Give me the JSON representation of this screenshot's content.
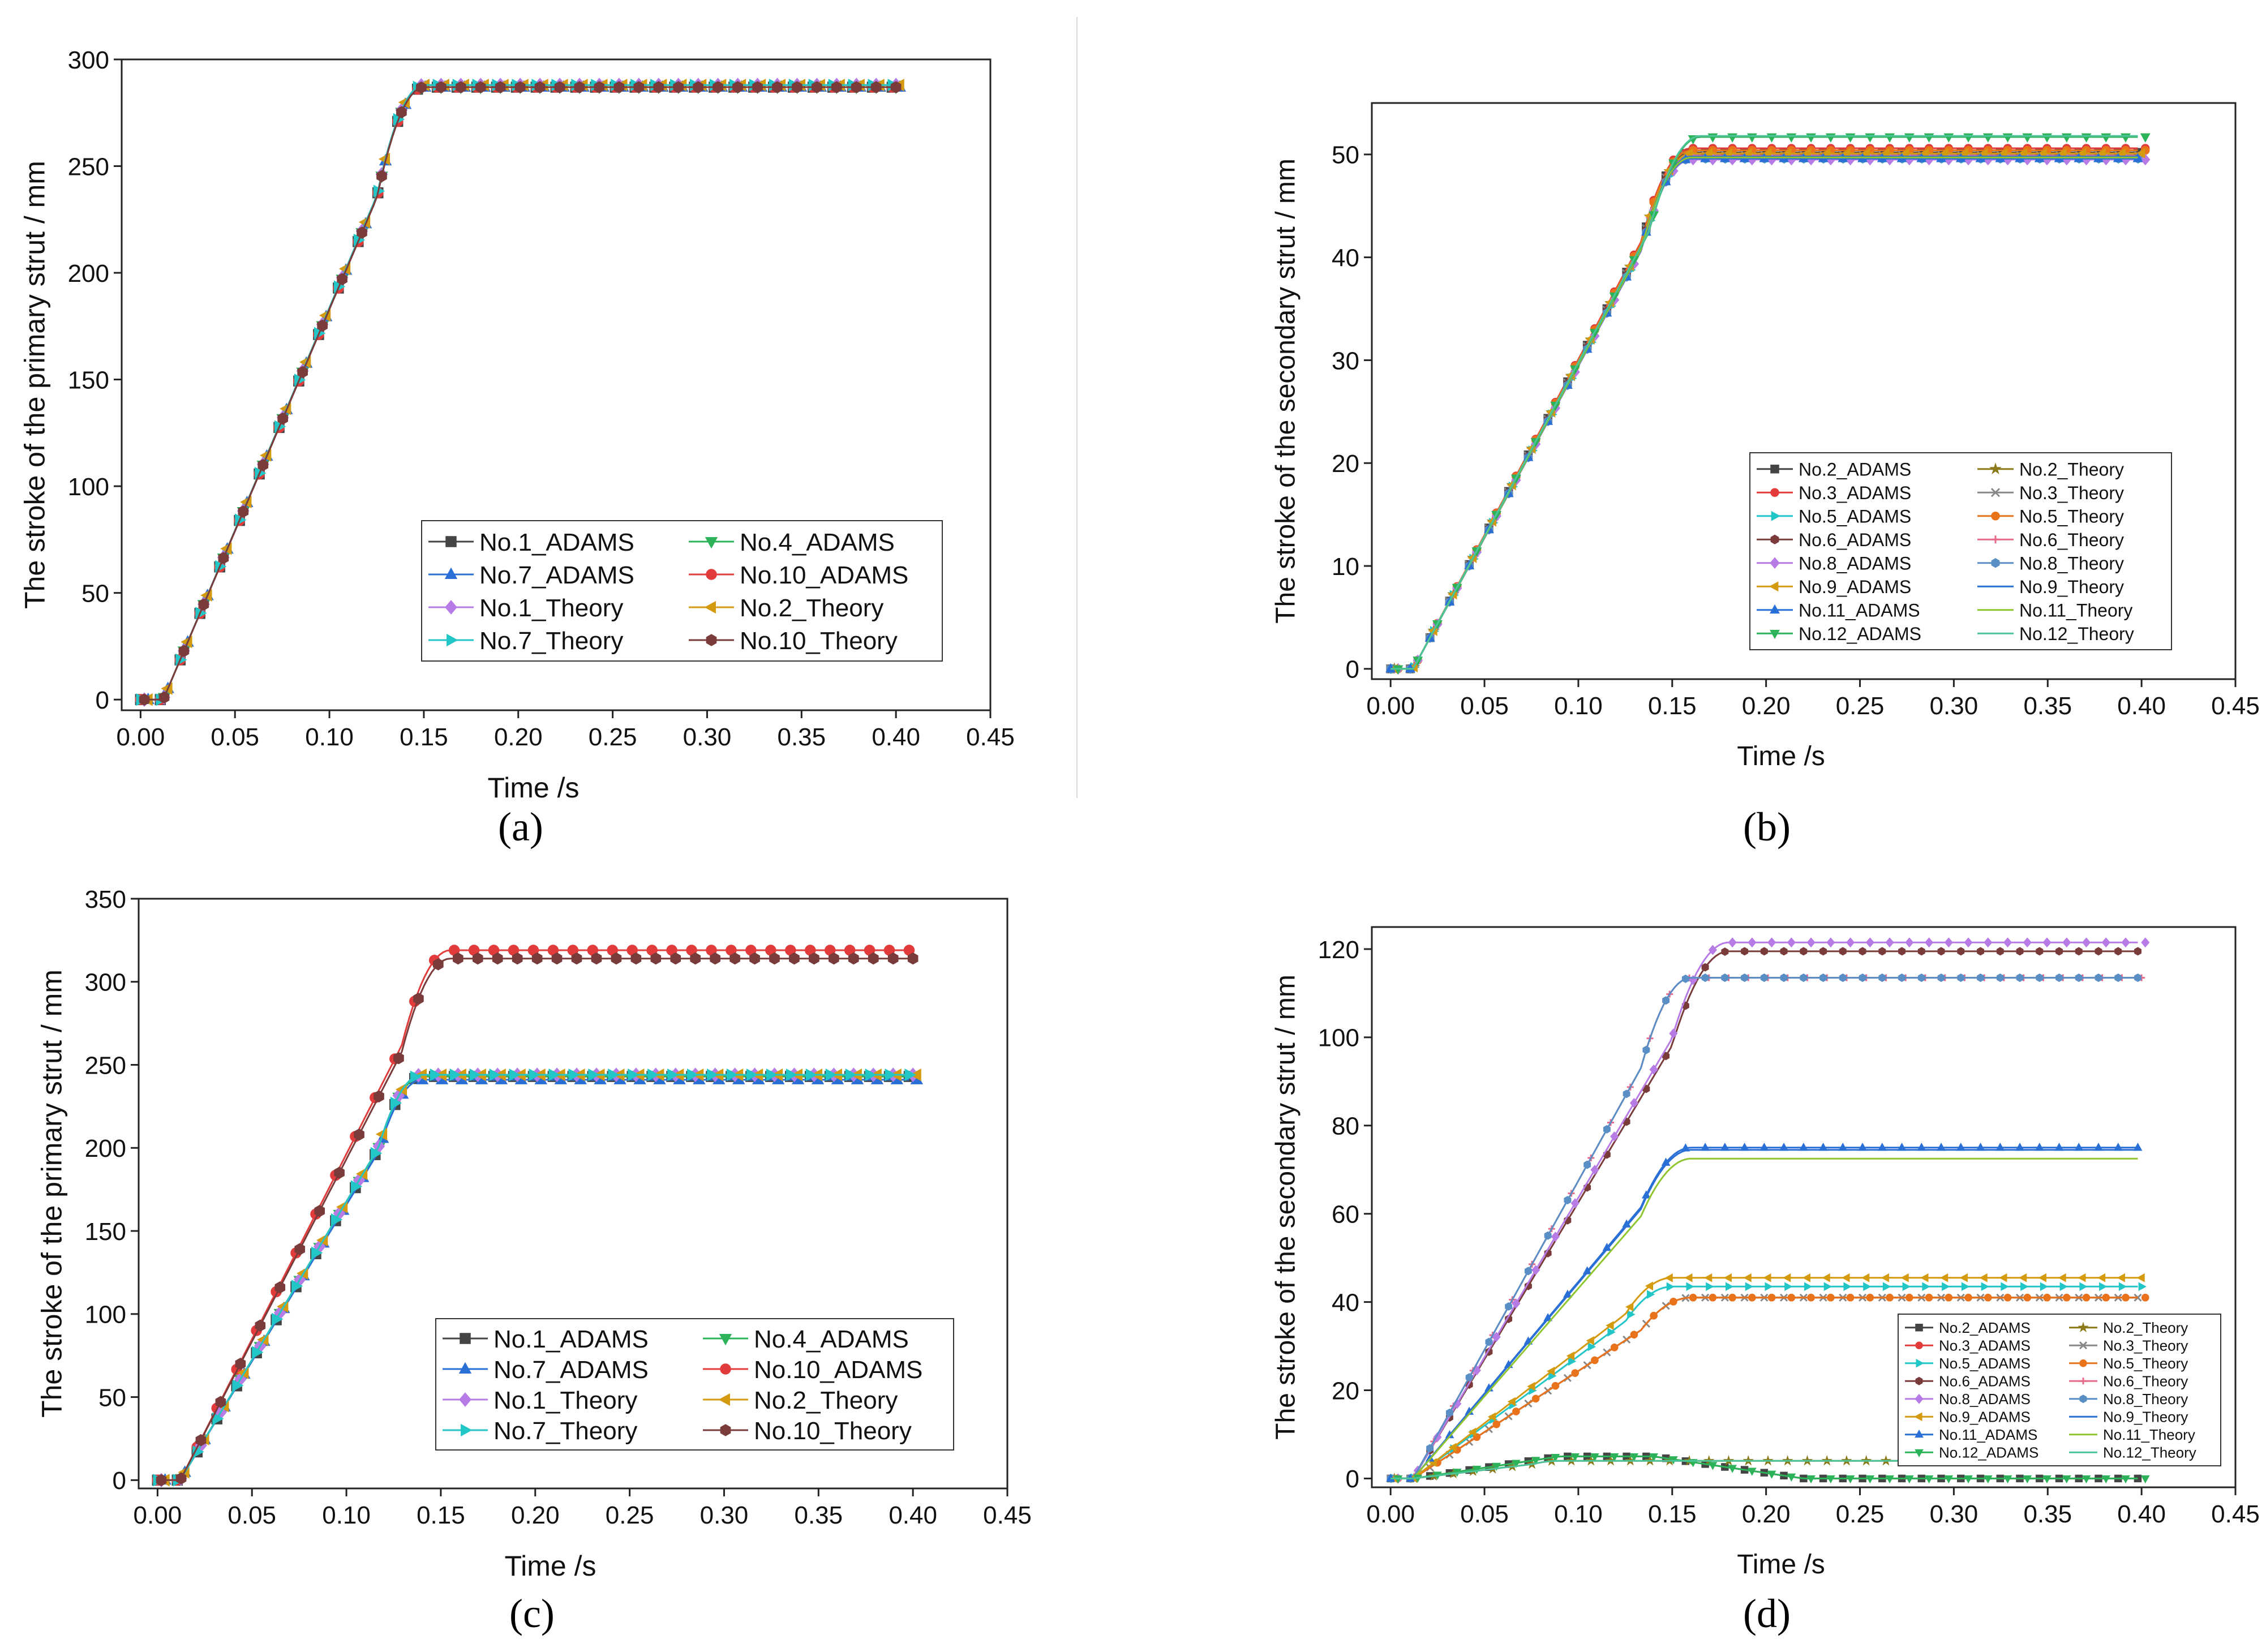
{
  "figure": {
    "captions": [
      "(a)",
      "(b)",
      "(c)",
      "(d)"
    ]
  },
  "chart_data": [
    {
      "id": "a",
      "type": "line",
      "xlabel": "Time /s",
      "ylabel": "The stroke of the primary strut / mm",
      "xlim": [
        -0.01,
        0.45
      ],
      "ylim": [
        -5,
        300
      ],
      "xticks": [
        "0.00",
        "0.05",
        "0.10",
        "0.15",
        "0.20",
        "0.25",
        "0.30",
        "0.35",
        "0.40",
        "0.45"
      ],
      "yticks": [
        "0",
        "50",
        "100",
        "150",
        "200",
        "250",
        "300"
      ],
      "legend_position": "bottom-right",
      "legend_columns": 2,
      "series": [
        {
          "name": "No.1_ADAMS",
          "color": "#444444",
          "marker": "square",
          "final": 287,
          "ramp_end": 0.15,
          "profile": "ramp"
        },
        {
          "name": "No.4_ADAMS",
          "color": "#2cb35a",
          "marker": "triangle-down",
          "final": 287,
          "ramp_end": 0.15,
          "profile": "ramp"
        },
        {
          "name": "No.7_ADAMS",
          "color": "#2a6fd6",
          "marker": "triangle-up",
          "final": 287,
          "ramp_end": 0.15,
          "profile": "ramp"
        },
        {
          "name": "No.10_ADAMS",
          "color": "#e23b3b",
          "marker": "circle",
          "final": 287,
          "ramp_end": 0.15,
          "profile": "ramp"
        },
        {
          "name": "No.1_Theory",
          "color": "#b77be6",
          "marker": "diamond",
          "final": 288,
          "ramp_end": 0.15,
          "profile": "ramp"
        },
        {
          "name": "No.2_Theory",
          "color": "#d49a10",
          "marker": "triangle-left",
          "final": 288,
          "ramp_end": 0.15,
          "profile": "ramp"
        },
        {
          "name": "No.7_Theory",
          "color": "#22c6c6",
          "marker": "triangle-right",
          "final": 288,
          "ramp_end": 0.15,
          "profile": "ramp"
        },
        {
          "name": "No.10_Theory",
          "color": "#7a3b3b",
          "marker": "hexagon",
          "final": 287,
          "ramp_end": 0.15,
          "profile": "ramp"
        }
      ]
    },
    {
      "id": "b",
      "type": "line",
      "xlabel": "Time /s",
      "ylabel": "The stroke of the secondary strut / mm",
      "xlim": [
        -0.01,
        0.45
      ],
      "ylim": [
        -1,
        55
      ],
      "xticks": [
        "0.00",
        "0.05",
        "0.10",
        "0.15",
        "0.20",
        "0.25",
        "0.30",
        "0.35",
        "0.40",
        "0.45"
      ],
      "yticks": [
        "0",
        "10",
        "20",
        "30",
        "40",
        "50"
      ],
      "legend_position": "bottom-right",
      "legend_columns": 2,
      "series": [
        {
          "name": "No.2_ADAMS",
          "color": "#444444",
          "marker": "square",
          "final": 50.2,
          "ramp_end": 0.16,
          "profile": "ramp"
        },
        {
          "name": "No.2_Theory",
          "color": "#8a7a1a",
          "marker": "star",
          "final": 50.0,
          "ramp_end": 0.16,
          "profile": "ramp"
        },
        {
          "name": "No.3_ADAMS",
          "color": "#e23b3b",
          "marker": "circle",
          "final": 50.6,
          "ramp_end": 0.16,
          "profile": "ramp"
        },
        {
          "name": "No.3_Theory",
          "color": "#888888",
          "marker": "x",
          "final": 50.0,
          "ramp_end": 0.16,
          "profile": "ramp"
        },
        {
          "name": "No.5_ADAMS",
          "color": "#22c6c6",
          "marker": "triangle-right",
          "final": 49.6,
          "ramp_end": 0.16,
          "profile": "ramp"
        },
        {
          "name": "No.5_Theory",
          "color": "#e8731a",
          "marker": "circle",
          "final": 50.4,
          "ramp_end": 0.16,
          "profile": "ramp"
        },
        {
          "name": "No.6_ADAMS",
          "color": "#7a3b3b",
          "marker": "hexagon",
          "final": 49.8,
          "ramp_end": 0.16,
          "profile": "ramp"
        },
        {
          "name": "No.6_Theory",
          "color": "#e86a8a",
          "marker": "plus",
          "final": 49.9,
          "ramp_end": 0.16,
          "profile": "ramp"
        },
        {
          "name": "No.8_ADAMS",
          "color": "#b77be6",
          "marker": "diamond",
          "final": 49.5,
          "ramp_end": 0.16,
          "profile": "ramp"
        },
        {
          "name": "No.8_Theory",
          "color": "#5a8fc6",
          "marker": "hexagon",
          "final": 49.6,
          "ramp_end": 0.16,
          "profile": "ramp"
        },
        {
          "name": "No.9_ADAMS",
          "color": "#d49a10",
          "marker": "triangle-left",
          "final": 50.1,
          "ramp_end": 0.16,
          "profile": "ramp"
        },
        {
          "name": "No.9_Theory",
          "color": "#2a6fd6",
          "marker": "none",
          "final": 49.8,
          "ramp_end": 0.16,
          "profile": "ramp"
        },
        {
          "name": "No.11_ADAMS",
          "color": "#2a6fd6",
          "marker": "triangle-up",
          "final": 49.6,
          "ramp_end": 0.16,
          "profile": "ramp"
        },
        {
          "name": "No.11_Theory",
          "color": "#8fc630",
          "marker": "none",
          "final": 49.7,
          "ramp_end": 0.16,
          "profile": "ramp"
        },
        {
          "name": "No.12_ADAMS",
          "color": "#2cb35a",
          "marker": "triangle-down",
          "final": 51.7,
          "ramp_end": 0.165,
          "profile": "ramp"
        },
        {
          "name": "No.12_Theory",
          "color": "#4cc49a",
          "marker": "none",
          "final": 51.8,
          "ramp_end": 0.165,
          "profile": "ramp"
        }
      ]
    },
    {
      "id": "c",
      "type": "line",
      "xlabel": "Time /s",
      "ylabel": "The stroke of the primary strut / mm",
      "xlim": [
        -0.01,
        0.45
      ],
      "ylim": [
        -5,
        350
      ],
      "xticks": [
        "0.00",
        "0.05",
        "0.10",
        "0.15",
        "0.20",
        "0.25",
        "0.30",
        "0.35",
        "0.40",
        "0.45"
      ],
      "yticks": [
        "0",
        "50",
        "100",
        "150",
        "200",
        "250",
        "300",
        "350"
      ],
      "legend_position": "bottom-right",
      "legend_columns": 2,
      "series": [
        {
          "name": "No.1_ADAMS",
          "color": "#444444",
          "marker": "square",
          "final": 243,
          "ramp_end": 0.14,
          "profile": "ramp"
        },
        {
          "name": "No.4_ADAMS",
          "color": "#2cb35a",
          "marker": "triangle-down",
          "final": 243,
          "ramp_end": 0.14,
          "profile": "ramp"
        },
        {
          "name": "No.7_ADAMS",
          "color": "#2a6fd6",
          "marker": "triangle-up",
          "final": 241,
          "ramp_end": 0.14,
          "profile": "ramp"
        },
        {
          "name": "No.10_ADAMS",
          "color": "#e23b3b",
          "marker": "circle",
          "final": 319,
          "ramp_end": 0.155,
          "profile": "ramp"
        },
        {
          "name": "No.1_Theory",
          "color": "#b77be6",
          "marker": "diamond",
          "final": 244,
          "ramp_end": 0.14,
          "profile": "ramp"
        },
        {
          "name": "No.2_Theory",
          "color": "#d49a10",
          "marker": "triangle-left",
          "final": 244,
          "ramp_end": 0.14,
          "profile": "ramp"
        },
        {
          "name": "No.7_Theory",
          "color": "#22c6c6",
          "marker": "triangle-right",
          "final": 244,
          "ramp_end": 0.14,
          "profile": "ramp"
        },
        {
          "name": "No.10_Theory",
          "color": "#7a3b3b",
          "marker": "hexagon",
          "final": 314,
          "ramp_end": 0.155,
          "profile": "ramp"
        }
      ]
    },
    {
      "id": "d",
      "type": "line",
      "xlabel": "Time /s",
      "ylabel": "The stroke of the secondary strut / mm",
      "xlim": [
        -0.01,
        0.45
      ],
      "ylim": [
        -2,
        125
      ],
      "xticks": [
        "0.00",
        "0.05",
        "0.10",
        "0.15",
        "0.20",
        "0.25",
        "0.30",
        "0.35",
        "0.40",
        "0.45"
      ],
      "yticks": [
        "0",
        "20",
        "40",
        "60",
        "80",
        "100",
        "120"
      ],
      "legend_position": "bottom-right",
      "legend_columns": 2,
      "series": [
        {
          "name": "No.2_ADAMS",
          "color": "#444444",
          "marker": "square",
          "final": 5,
          "ramp_end": 0.09,
          "profile": "hump",
          "hump_peak": 5,
          "hump_end": 0.22
        },
        {
          "name": "No.2_Theory",
          "color": "#8a7a1a",
          "marker": "star",
          "final": 4,
          "ramp_end": 0.09,
          "profile": "ramp"
        },
        {
          "name": "No.3_ADAMS",
          "color": "#e23b3b",
          "marker": "circle",
          "final": 41,
          "ramp_end": 0.16,
          "profile": "ramp"
        },
        {
          "name": "No.3_Theory",
          "color": "#888888",
          "marker": "x",
          "final": 41,
          "ramp_end": 0.16,
          "profile": "ramp"
        },
        {
          "name": "No.5_ADAMS",
          "color": "#22c6c6",
          "marker": "triangle-right",
          "final": 43.5,
          "ramp_end": 0.15,
          "profile": "ramp"
        },
        {
          "name": "No.5_Theory",
          "color": "#e8731a",
          "marker": "circle",
          "final": 41,
          "ramp_end": 0.16,
          "profile": "ramp"
        },
        {
          "name": "No.6_ADAMS",
          "color": "#7a3b3b",
          "marker": "hexagon",
          "final": 119.5,
          "ramp_end": 0.18,
          "profile": "ramp"
        },
        {
          "name": "No.6_Theory",
          "color": "#e86a8a",
          "marker": "plus",
          "final": 113.5,
          "ramp_end": 0.16,
          "profile": "ramp"
        },
        {
          "name": "No.8_ADAMS",
          "color": "#b77be6",
          "marker": "diamond",
          "final": 121.5,
          "ramp_end": 0.18,
          "profile": "ramp"
        },
        {
          "name": "No.8_Theory",
          "color": "#5a8fc6",
          "marker": "hexagon",
          "final": 113.5,
          "ramp_end": 0.16,
          "profile": "ramp"
        },
        {
          "name": "No.9_ADAMS",
          "color": "#d49a10",
          "marker": "triangle-left",
          "final": 45.5,
          "ramp_end": 0.15,
          "profile": "ramp"
        },
        {
          "name": "No.9_Theory",
          "color": "#2a6fd6",
          "marker": "none",
          "final": 74.5,
          "ramp_end": 0.16,
          "profile": "ramp"
        },
        {
          "name": "No.11_ADAMS",
          "color": "#2a6fd6",
          "marker": "triangle-up",
          "final": 75,
          "ramp_end": 0.16,
          "profile": "ramp"
        },
        {
          "name": "No.11_Theory",
          "color": "#8fc630",
          "marker": "none",
          "final": 72.5,
          "ramp_end": 0.16,
          "profile": "ramp"
        },
        {
          "name": "No.12_ADAMS",
          "color": "#2cb35a",
          "marker": "triangle-down",
          "final": 5,
          "ramp_end": 0.09,
          "profile": "hump",
          "hump_peak": 5,
          "hump_end": 0.22
        },
        {
          "name": "No.12_Theory",
          "color": "#4cc49a",
          "marker": "none",
          "final": 4,
          "ramp_end": 0.09,
          "profile": "ramp"
        }
      ]
    }
  ]
}
